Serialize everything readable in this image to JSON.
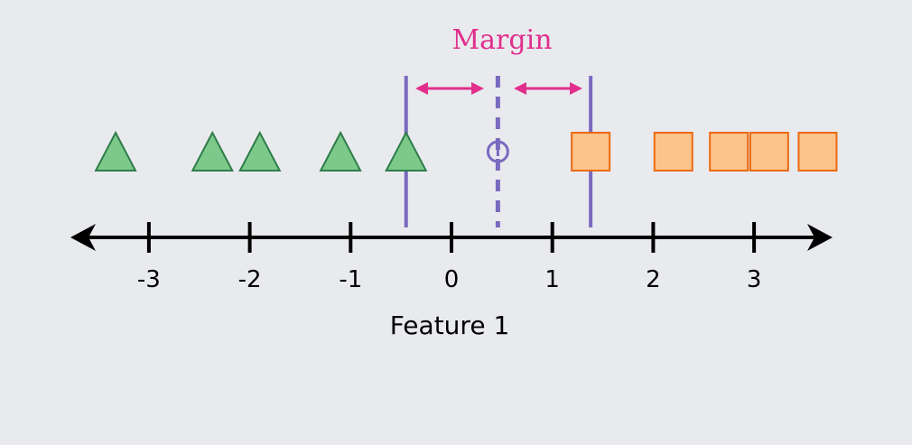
{
  "diagram": {
    "margin_label": "Margin",
    "axis_label": "Feature 1",
    "axis": {
      "ticks": [
        -3,
        -2,
        -1,
        0,
        1,
        2,
        3
      ],
      "tick_labels": [
        "-3",
        "-2",
        "-1",
        "0",
        "1",
        "2",
        "3"
      ]
    },
    "class_a": {
      "shape": "triangle",
      "points": [
        -3.33,
        -2.37,
        -1.9,
        -1.1,
        -0.45
      ]
    },
    "class_b": {
      "shape": "square",
      "points": [
        1.38,
        2.2,
        2.75,
        3.15,
        3.63
      ]
    },
    "boundary": 0.46,
    "support_lines": [
      -0.45,
      1.38
    ],
    "colors": {
      "background": "#e9eaee",
      "triangle_fill": "#7dc98a",
      "triangle_stroke": "#2e7d4a",
      "square_fill": "#fcc38a",
      "square_stroke": "#ea6a12",
      "margin_line": "#7a6ac0",
      "boundary_line": "#7a6ac0",
      "arrow": "#e02f8c",
      "margin_text": "#e02f8c",
      "axis": "#000000"
    }
  }
}
